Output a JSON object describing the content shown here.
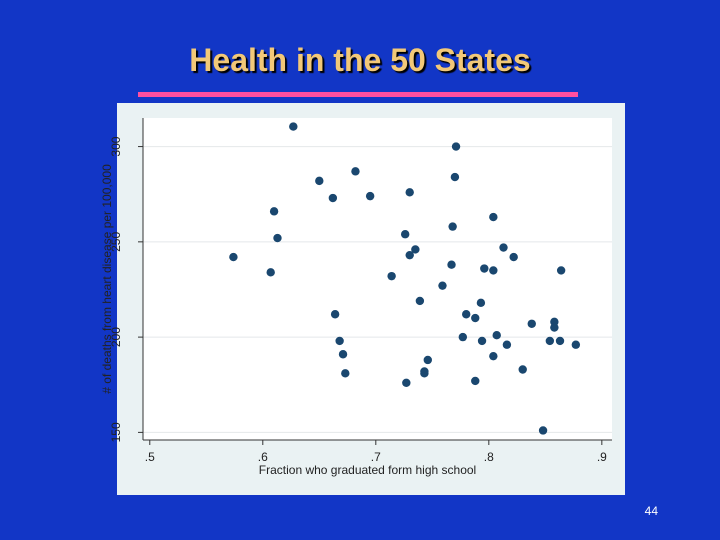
{
  "title": "Health in the 50 States",
  "page_number": "44",
  "chart_data": {
    "type": "scatter",
    "xlabel": "Fraction who graduated form high school",
    "ylabel": "# of deaths from heart disease per 100,000",
    "color": "#1a476f",
    "grid": true,
    "xlim": [
      0.494,
      0.909
    ],
    "ylim": [
      146,
      315
    ],
    "xticks": [
      {
        "value": 0.5,
        "label": ".5"
      },
      {
        "value": 0.6,
        "label": ".6"
      },
      {
        "value": 0.7,
        "label": ".7"
      },
      {
        "value": 0.8,
        "label": ".8"
      },
      {
        "value": 0.9,
        "label": ".9"
      }
    ],
    "yticks": [
      150,
      200,
      250,
      300
    ],
    "x": [
      0.627,
      0.771,
      0.77,
      0.682,
      0.65,
      0.662,
      0.695,
      0.73,
      0.61,
      0.613,
      0.574,
      0.607,
      0.726,
      0.735,
      0.73,
      0.768,
      0.804,
      0.813,
      0.822,
      0.767,
      0.796,
      0.804,
      0.864,
      0.714,
      0.759,
      0.739,
      0.793,
      0.664,
      0.78,
      0.788,
      0.838,
      0.858,
      0.858,
      0.777,
      0.807,
      0.668,
      0.794,
      0.816,
      0.854,
      0.863,
      0.877,
      0.671,
      0.804,
      0.746,
      0.673,
      0.743,
      0.743,
      0.83,
      0.727,
      0.788,
      0.848
    ],
    "y": [
      310.5,
      300,
      284,
      287,
      282,
      273,
      274,
      276,
      266,
      252,
      242,
      234,
      254,
      246,
      243,
      258,
      263,
      247,
      242,
      238,
      236,
      235,
      235,
      232,
      227,
      219,
      218,
      212,
      212,
      210,
      207,
      208,
      205,
      200,
      201,
      198,
      198,
      196,
      198,
      198,
      196,
      191,
      190,
      188,
      181,
      181,
      182,
      183,
      176,
      177,
      151
    ]
  }
}
